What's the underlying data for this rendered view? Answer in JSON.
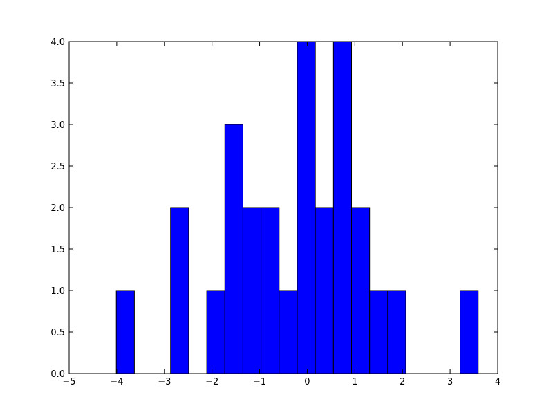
{
  "chart_data": {
    "type": "histogram",
    "bins": [
      -4.01,
      -3.63,
      -3.25,
      -2.87,
      -2.49,
      -2.11,
      -1.73,
      -1.35,
      -0.97,
      -0.59,
      -0.21,
      0.17,
      0.55,
      0.93,
      1.31,
      1.69,
      2.07,
      2.45,
      2.83,
      3.21,
      3.59
    ],
    "values": [
      1,
      0,
      0,
      2,
      0,
      1,
      3,
      2,
      2,
      1,
      4,
      2,
      4,
      2,
      1,
      1,
      0,
      0,
      0,
      1
    ],
    "color": "#0000ff",
    "xlim": [
      -5,
      4
    ],
    "xticks": [
      {
        "value": -5,
        "label": "−5"
      },
      {
        "value": -4,
        "label": "−4"
      },
      {
        "value": -3,
        "label": "−3"
      },
      {
        "value": -2,
        "label": "−2"
      },
      {
        "value": -1,
        "label": "−1"
      },
      0,
      1,
      2,
      3,
      4
    ],
    "ylim": [
      0,
      4
    ],
    "yticks": [
      {
        "value": 0,
        "label": "0.0"
      },
      {
        "value": 0.5,
        "label": "0.5"
      },
      {
        "value": 1,
        "label": "1.0"
      },
      {
        "value": 1.5,
        "label": "1.5"
      },
      {
        "value": 2,
        "label": "2.0"
      },
      {
        "value": 2.5,
        "label": "2.5"
      },
      {
        "value": 3,
        "label": "3.0"
      },
      {
        "value": 3.5,
        "label": "3.5"
      },
      {
        "value": 4,
        "label": "4.0"
      }
    ],
    "grid": false
  }
}
